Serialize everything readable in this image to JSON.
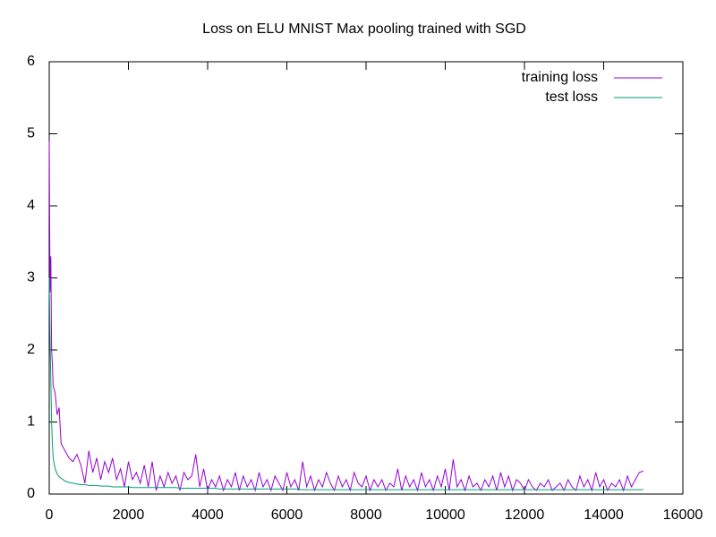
{
  "chart_data": {
    "type": "line",
    "title": "Loss on ELU MNIST Max pooling trained with SGD",
    "x": [
      0,
      20,
      40,
      60,
      80,
      100,
      150,
      200,
      250,
      300,
      400,
      500,
      600,
      700,
      800,
      900,
      1000,
      1100,
      1200,
      1300,
      1400,
      1500,
      1600,
      1700,
      1800,
      1900,
      2000,
      2100,
      2200,
      2300,
      2400,
      2500,
      2600,
      2700,
      2800,
      2900,
      3000,
      3100,
      3200,
      3300,
      3400,
      3500,
      3600,
      3700,
      3800,
      3900,
      4000,
      4100,
      4200,
      4300,
      4400,
      4500,
      4600,
      4700,
      4800,
      4900,
      5000,
      5100,
      5200,
      5300,
      5400,
      5500,
      5600,
      5700,
      5800,
      5900,
      6000,
      6100,
      6200,
      6300,
      6400,
      6500,
      6600,
      6700,
      6800,
      6900,
      7000,
      7100,
      7200,
      7300,
      7400,
      7500,
      7600,
      7700,
      7800,
      7900,
      8000,
      8100,
      8200,
      8300,
      8400,
      8500,
      8600,
      8700,
      8800,
      8900,
      9000,
      9100,
      9200,
      9300,
      9400,
      9500,
      9600,
      9700,
      9800,
      9900,
      10000,
      10100,
      10200,
      10300,
      10400,
      10500,
      10600,
      10700,
      10800,
      10900,
      11000,
      11100,
      11200,
      11300,
      11400,
      11500,
      11600,
      11700,
      11800,
      11900,
      12000,
      12100,
      12200,
      12300,
      12400,
      12500,
      12600,
      12700,
      12800,
      12900,
      13000,
      13100,
      13200,
      13300,
      13400,
      13500,
      13600,
      13700,
      13800,
      13900,
      14000,
      14100,
      14200,
      14300,
      14400,
      14500,
      14600,
      14700,
      14800,
      14900,
      15000
    ],
    "series": [
      {
        "name": "training loss",
        "color": "#9400d3",
        "values": [
          4.9,
          2.8,
          3.3,
          2.0,
          1.8,
          1.5,
          1.4,
          1.1,
          1.2,
          0.7,
          0.6,
          0.5,
          0.45,
          0.55,
          0.4,
          0.15,
          0.6,
          0.3,
          0.5,
          0.2,
          0.45,
          0.3,
          0.5,
          0.2,
          0.35,
          0.1,
          0.45,
          0.2,
          0.3,
          0.15,
          0.4,
          0.1,
          0.45,
          0.05,
          0.25,
          0.1,
          0.3,
          0.15,
          0.25,
          0.05,
          0.3,
          0.2,
          0.25,
          0.55,
          0.1,
          0.35,
          0.05,
          0.2,
          0.1,
          0.25,
          0.05,
          0.2,
          0.1,
          0.3,
          0.05,
          0.25,
          0.1,
          0.2,
          0.05,
          0.3,
          0.1,
          0.2,
          0.05,
          0.25,
          0.15,
          0.05,
          0.3,
          0.1,
          0.2,
          0.05,
          0.45,
          0.1,
          0.25,
          0.05,
          0.2,
          0.1,
          0.3,
          0.15,
          0.05,
          0.25,
          0.1,
          0.2,
          0.05,
          0.3,
          0.15,
          0.1,
          0.25,
          0.05,
          0.2,
          0.1,
          0.2,
          0.05,
          0.15,
          0.1,
          0.35,
          0.05,
          0.25,
          0.1,
          0.2,
          0.05,
          0.3,
          0.1,
          0.2,
          0.05,
          0.25,
          0.1,
          0.35,
          0.05,
          0.48,
          0.1,
          0.2,
          0.05,
          0.25,
          0.1,
          0.15,
          0.05,
          0.2,
          0.1,
          0.25,
          0.05,
          0.3,
          0.1,
          0.25,
          0.05,
          0.2,
          0.15,
          0.05,
          0.2,
          0.1,
          0.05,
          0.15,
          0.1,
          0.2,
          0.05,
          0.1,
          0.15,
          0.05,
          0.2,
          0.1,
          0.05,
          0.25,
          0.1,
          0.2,
          0.05,
          0.3,
          0.1,
          0.2,
          0.05,
          0.15,
          0.1,
          0.2,
          0.05,
          0.25,
          0.1,
          0.2,
          0.3,
          0.32
        ]
      },
      {
        "name": "test loss",
        "color": "#009e73",
        "values": [
          3.0,
          2.2,
          1.6,
          1.0,
          0.7,
          0.5,
          0.35,
          0.28,
          0.24,
          0.22,
          0.18,
          0.16,
          0.15,
          0.14,
          0.13,
          0.13,
          0.12,
          0.12,
          0.12,
          0.11,
          0.11,
          0.11,
          0.1,
          0.1,
          0.1,
          0.1,
          0.1,
          0.09,
          0.09,
          0.09,
          0.09,
          0.09,
          0.09,
          0.09,
          0.09,
          0.09,
          0.09,
          0.09,
          0.09,
          0.08,
          0.08,
          0.08,
          0.08,
          0.08,
          0.08,
          0.08,
          0.08,
          0.08,
          0.08,
          0.07,
          0.07,
          0.07,
          0.07,
          0.07,
          0.07,
          0.07,
          0.07,
          0.07,
          0.07,
          0.07,
          0.07,
          0.07,
          0.07,
          0.07,
          0.07,
          0.07,
          0.07,
          0.07,
          0.07,
          0.06,
          0.06,
          0.06,
          0.06,
          0.06,
          0.06,
          0.06,
          0.06,
          0.06,
          0.06,
          0.06,
          0.06,
          0.06,
          0.06,
          0.06,
          0.06,
          0.06,
          0.06,
          0.06,
          0.06,
          0.06,
          0.06,
          0.06,
          0.06,
          0.06,
          0.06,
          0.06,
          0.06,
          0.06,
          0.06,
          0.06,
          0.06,
          0.06,
          0.06,
          0.06,
          0.06,
          0.06,
          0.06,
          0.06,
          0.06,
          0.06,
          0.06,
          0.06,
          0.06,
          0.06,
          0.06,
          0.06,
          0.06,
          0.06,
          0.06,
          0.06,
          0.06,
          0.06,
          0.06,
          0.06,
          0.06,
          0.06,
          0.06,
          0.06,
          0.06,
          0.06,
          0.06,
          0.06,
          0.06,
          0.06,
          0.06,
          0.06,
          0.06,
          0.06,
          0.06,
          0.06,
          0.06,
          0.06,
          0.06,
          0.06,
          0.06,
          0.06,
          0.06,
          0.06,
          0.06,
          0.06,
          0.06,
          0.06,
          0.06,
          0.06,
          0.06,
          0.06,
          0.06
        ]
      }
    ],
    "xlim": [
      0,
      16000
    ],
    "xticks": [
      0,
      2000,
      4000,
      6000,
      8000,
      10000,
      12000,
      14000,
      16000
    ],
    "ylim": [
      0,
      6
    ],
    "yticks": [
      0,
      1,
      2,
      3,
      4,
      5,
      6
    ],
    "grid": false,
    "legend": "top-right"
  }
}
